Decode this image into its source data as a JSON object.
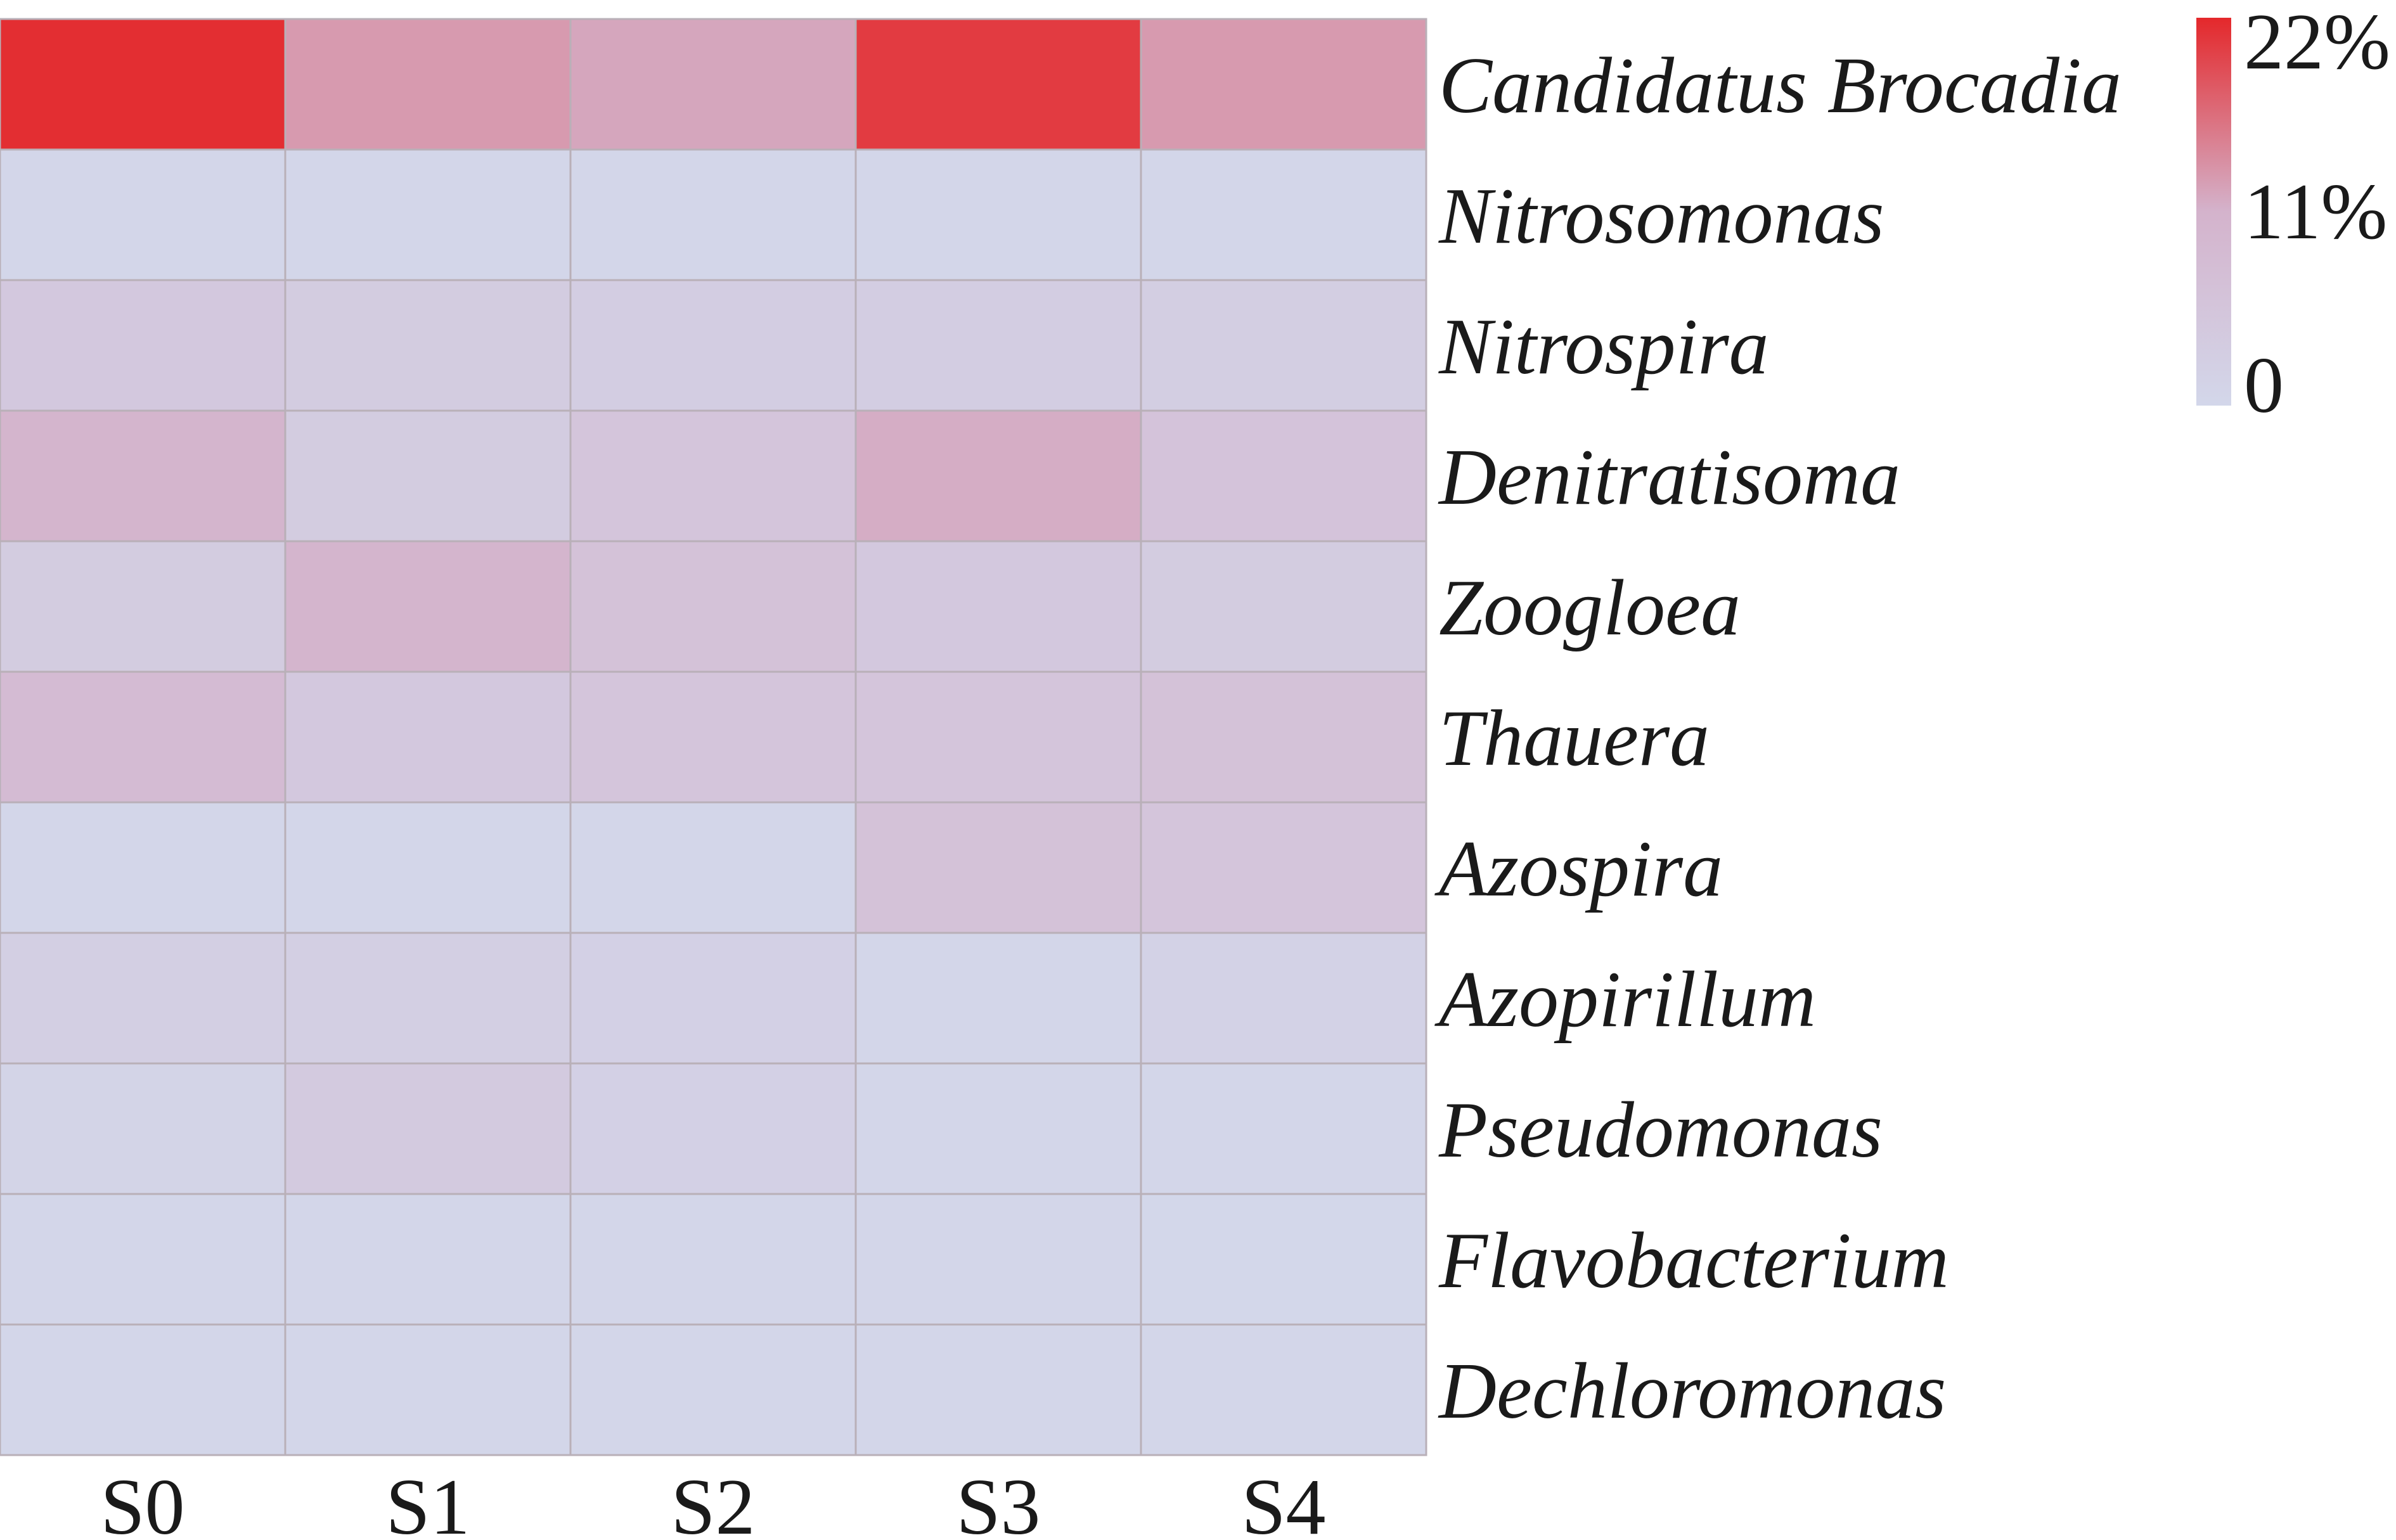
{
  "chart_data": {
    "type": "heatmap",
    "unit": "%",
    "columns": [
      "S0",
      "S1",
      "S2",
      "S3",
      "S4"
    ],
    "rows": [
      "Candidatus Brocadia",
      "Nitrosomonas",
      "Nitrospira",
      "Denitratisoma",
      "Zoogloea",
      "Thauera",
      "Azospira",
      "Azopirillum",
      "Pseudomonas",
      "Flavobacterium",
      "Dechloromonas"
    ],
    "values": [
      [
        21.5,
        13.0,
        12.0,
        20.5,
        13.0
      ],
      [
        0.3,
        0.3,
        0.3,
        0.3,
        0.3
      ],
      [
        4.5,
        3.5,
        3.0,
        3.0,
        2.8
      ],
      [
        10.5,
        3.5,
        5.5,
        11.5,
        6.0
      ],
      [
        3.5,
        10.5,
        6.5,
        4.5,
        3.5
      ],
      [
        8.5,
        4.5,
        5.5,
        5.5,
        6.5
      ],
      [
        0.3,
        0.3,
        0.3,
        6.5,
        5.5
      ],
      [
        2.5,
        2.5,
        2.0,
        0.3,
        1.5
      ],
      [
        1.0,
        4.0,
        2.0,
        0.3,
        0.3
      ],
      [
        0.3,
        0.3,
        0.3,
        0.3,
        0.0
      ],
      [
        0.3,
        0.3,
        0.3,
        0.3,
        0.3
      ]
    ],
    "colorbar": {
      "min": 0,
      "max": 22,
      "ticks": [
        {
          "value": 22,
          "label": "22%"
        },
        {
          "value": 11,
          "label": "11%"
        },
        {
          "value": 0,
          "label": "0"
        }
      ],
      "colors": {
        "low": "#d3d7ea",
        "mid": "#d4b3cc",
        "high": "#e4282b"
      }
    },
    "grid_line_color": "#b9b0b8"
  }
}
